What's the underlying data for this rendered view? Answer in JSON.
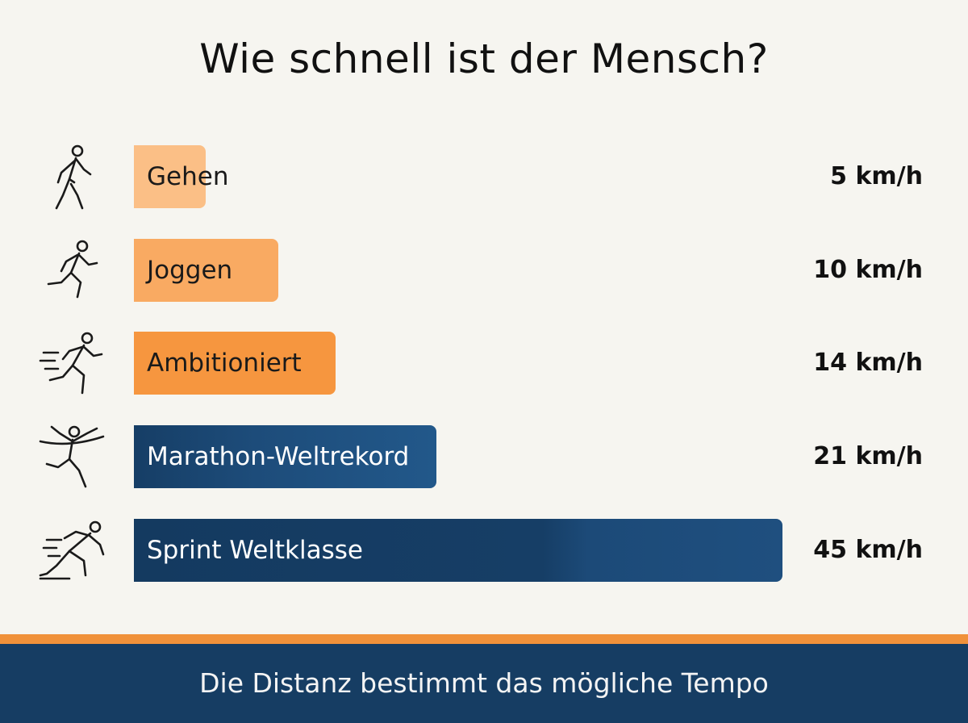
{
  "title": "Wie schnell ist der Mensch?",
  "footer": "Die Distanz bestimmt das mögliche Tempo",
  "chart_data": {
    "type": "bar",
    "orientation": "horizontal",
    "title": "Wie schnell ist der Mensch?",
    "categories": [
      "Gehen",
      "Joggen",
      "Ambitioniert",
      "Marathon-Weltrekord",
      "Sprint Weltklasse"
    ],
    "values": [
      5,
      10,
      14,
      21,
      45
    ],
    "value_labels": [
      "5 km/h",
      "10 km/h",
      "14 km/h",
      "21 km/h",
      "45 km/h"
    ],
    "unit": "km/h",
    "xlim": [
      0,
      45
    ],
    "grid": false,
    "icons": [
      "walking-person-icon",
      "jogging-person-icon",
      "running-person-icon",
      "finish-line-runner-icon",
      "sprint-start-runner-icon"
    ],
    "colors": [
      "#fbbf86",
      "#f9aa62",
      "#f6963f",
      "#1f4f7d",
      "#173f68"
    ],
    "label_colors": [
      "#1a1a1a",
      "#1a1a1a",
      "#1a1a1a",
      "#ffffff",
      "#ffffff"
    ]
  }
}
